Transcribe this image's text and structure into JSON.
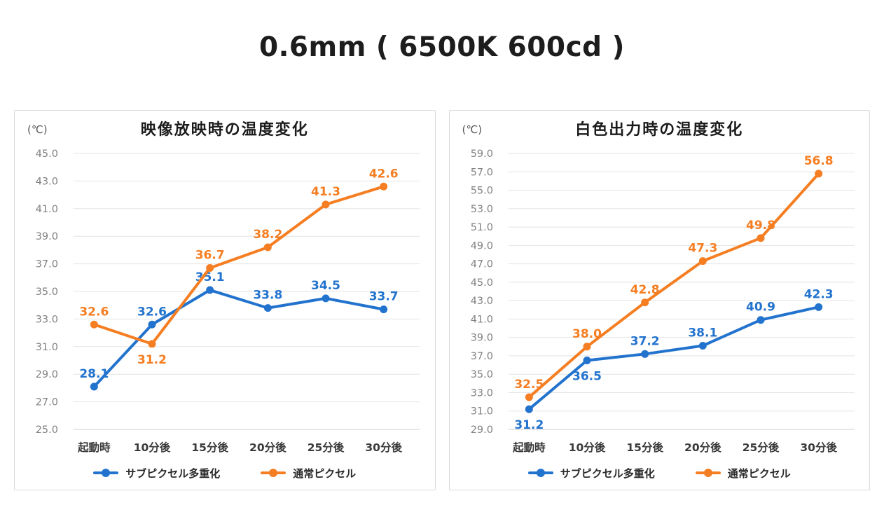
{
  "page_title": "0.6mm ( 6500K 600cd )",
  "colors": {
    "series_blue": "#2273CE",
    "series_orange": "#F57E22",
    "gridline": "#e4e4e4",
    "axis_line": "#cccccc",
    "ytick_text": "#828282",
    "xtick_text": "#3a3a3a"
  },
  "chart_data": [
    {
      "type": "line",
      "title": "映像放映時の温度変化",
      "unit_label": "(℃)",
      "categories": [
        "起動時",
        "10分後",
        "15分後",
        "20分後",
        "25分後",
        "30分後"
      ],
      "series": [
        {
          "name": "サブピクセル多重化",
          "color": "#2273CE",
          "values": [
            28.1,
            32.6,
            35.1,
            33.8,
            34.5,
            33.7
          ],
          "label_pos": [
            "above",
            "above",
            "above",
            "above",
            "above",
            "above"
          ]
        },
        {
          "name": "通常ピクセル",
          "color": "#F57E22",
          "values": [
            32.6,
            31.2,
            36.7,
            38.2,
            41.3,
            42.6
          ],
          "label_pos": [
            "above",
            "below",
            "above",
            "above",
            "above",
            "above"
          ]
        }
      ],
      "xlabel": "",
      "ylabel": "(℃)",
      "ylim": [
        25.0,
        45.0
      ],
      "ytick_step": 2.0,
      "grid": true,
      "legend_position": "bottom"
    },
    {
      "type": "line",
      "title": "白色出力時の温度変化",
      "unit_label": "(℃)",
      "categories": [
        "起動時",
        "10分後",
        "15分後",
        "20分後",
        "25分後",
        "30分後"
      ],
      "series": [
        {
          "name": "サブピクセル多重化",
          "color": "#2273CE",
          "values": [
            31.2,
            36.5,
            37.2,
            38.1,
            40.9,
            42.3
          ],
          "label_pos": [
            "below",
            "below",
            "above",
            "above",
            "above",
            "above"
          ]
        },
        {
          "name": "通常ピクセル",
          "color": "#F57E22",
          "values": [
            32.5,
            38.0,
            42.8,
            47.3,
            49.8,
            56.8
          ],
          "label_pos": [
            "above",
            "above",
            "above",
            "above",
            "above",
            "above"
          ]
        }
      ],
      "xlabel": "",
      "ylabel": "(℃)",
      "ylim": [
        29.0,
        59.0
      ],
      "ytick_step": 2.0,
      "grid": true,
      "legend_position": "bottom"
    }
  ]
}
